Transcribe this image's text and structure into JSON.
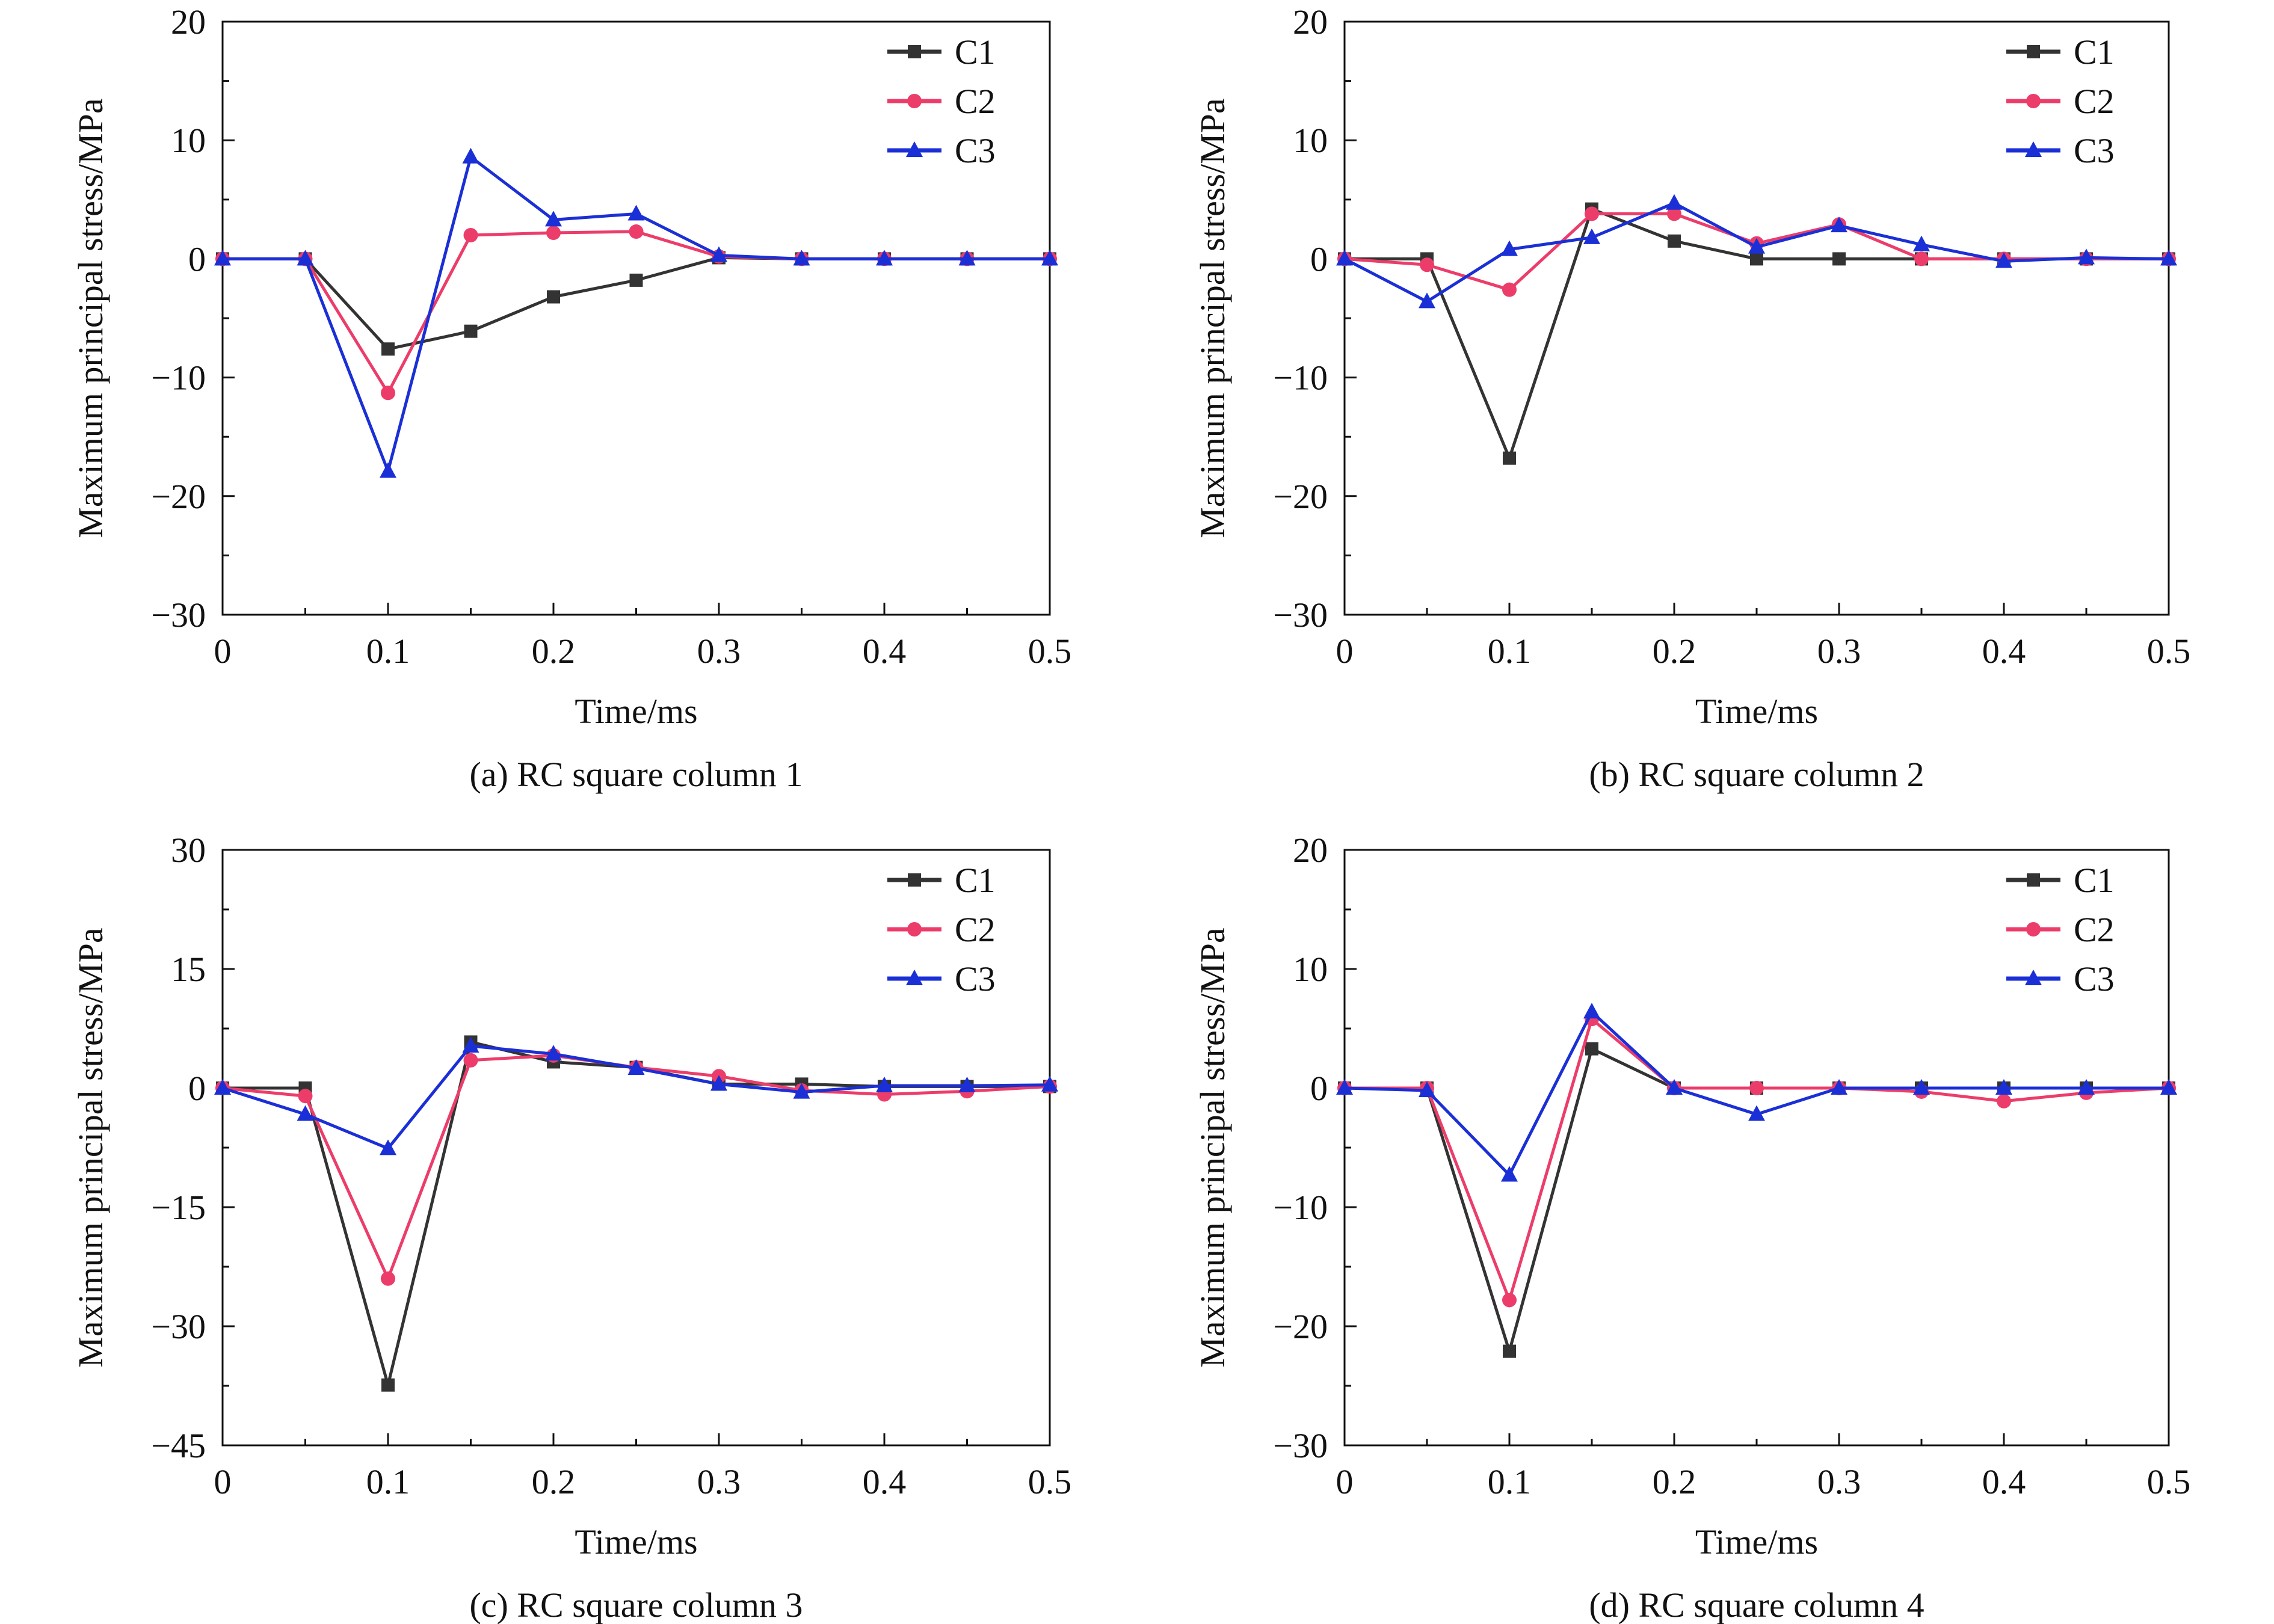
{
  "series_styles": [
    {
      "name": "C1",
      "color": "#333333",
      "marker": "square"
    },
    {
      "name": "C2",
      "color": "#ec3d6a",
      "marker": "circle"
    },
    {
      "name": "C3",
      "color": "#1b2fd6",
      "marker": "triangle"
    }
  ],
  "chart_data": [
    {
      "type": "line",
      "caption": "(a) RC square column 1",
      "xlabel": "Time/ms",
      "ylabel": "Maximum principal stress/MPa",
      "xlim": [
        0,
        0.5
      ],
      "ylim": [
        -30,
        20
      ],
      "xticks": [
        0,
        0.1,
        0.2,
        0.3,
        0.4,
        0.5
      ],
      "xtick_labels": [
        "0",
        "0.1",
        "0.2",
        "0.3",
        "0.4",
        "0.5"
      ],
      "yticks": [
        -30,
        -20,
        -10,
        0,
        10,
        20
      ],
      "ytick_labels": [
        "−30",
        "−20",
        "−10",
        "0",
        "10",
        "20"
      ],
      "legend": "top-right",
      "grid": false,
      "x": [
        0,
        0.05,
        0.1,
        0.15,
        0.2,
        0.25,
        0.3,
        0.35,
        0.4,
        0.45,
        0.5
      ],
      "series": [
        {
          "name": "C1",
          "values": [
            0,
            0,
            -7.6,
            -6.1,
            -3.2,
            -1.8,
            0.1,
            0,
            0,
            0,
            0
          ]
        },
        {
          "name": "C2",
          "values": [
            0,
            0,
            -11.3,
            2.0,
            2.2,
            2.3,
            0.2,
            0,
            0,
            0,
            0
          ]
        },
        {
          "name": "C3",
          "values": [
            0,
            0,
            -17.9,
            8.6,
            3.3,
            3.8,
            0.3,
            0,
            0,
            0,
            0
          ]
        }
      ]
    },
    {
      "type": "line",
      "caption": "(b) RC square column 2",
      "xlabel": "Time/ms",
      "ylabel": "Maximum principal stress/MPa",
      "xlim": [
        0,
        0.5
      ],
      "ylim": [
        -30,
        20
      ],
      "xticks": [
        0,
        0.1,
        0.2,
        0.3,
        0.4,
        0.5
      ],
      "xtick_labels": [
        "0",
        "0.1",
        "0.2",
        "0.3",
        "0.4",
        "0.5"
      ],
      "yticks": [
        -30,
        -20,
        -10,
        0,
        10,
        20
      ],
      "ytick_labels": [
        "−30",
        "−20",
        "−10",
        "0",
        "10",
        "20"
      ],
      "legend": "top-right",
      "grid": false,
      "x": [
        0,
        0.05,
        0.1,
        0.15,
        0.2,
        0.25,
        0.3,
        0.35,
        0.4,
        0.45,
        0.5
      ],
      "series": [
        {
          "name": "C1",
          "values": [
            0,
            0,
            -16.8,
            4.2,
            1.5,
            0,
            0,
            0,
            0,
            0,
            0
          ]
        },
        {
          "name": "C2",
          "values": [
            0,
            -0.5,
            -2.6,
            3.8,
            3.8,
            1.3,
            2.9,
            0,
            0,
            0,
            0
          ]
        },
        {
          "name": "C3",
          "values": [
            0,
            -3.6,
            0.8,
            1.8,
            4.7,
            1.0,
            2.8,
            1.2,
            -0.2,
            0.1,
            0
          ]
        }
      ]
    },
    {
      "type": "line",
      "caption": "(c) RC square column 3",
      "xlabel": "Time/ms",
      "ylabel": "Maximum principal stress/MPa",
      "xlim": [
        0,
        0.5
      ],
      "ylim": [
        -45,
        30
      ],
      "xticks": [
        0,
        0.1,
        0.2,
        0.3,
        0.4,
        0.5
      ],
      "xtick_labels": [
        "0",
        "0.1",
        "0.2",
        "0.3",
        "0.4",
        "0.5"
      ],
      "yticks": [
        -45,
        -30,
        -15,
        0,
        15,
        30
      ],
      "ytick_labels": [
        "−45",
        "−30",
        "−15",
        "0",
        "15",
        "30"
      ],
      "legend": "top-right",
      "grid": false,
      "x": [
        0,
        0.05,
        0.1,
        0.15,
        0.2,
        0.25,
        0.3,
        0.35,
        0.4,
        0.45,
        0.5
      ],
      "series": [
        {
          "name": "C1",
          "values": [
            0,
            0,
            -37.4,
            5.8,
            3.3,
            2.6,
            0.5,
            0.5,
            0.2,
            0.2,
            0.2
          ]
        },
        {
          "name": "C2",
          "values": [
            0,
            -1.0,
            -24.0,
            3.5,
            4.1,
            2.6,
            1.5,
            -0.3,
            -0.8,
            -0.4,
            0.2
          ]
        },
        {
          "name": "C3",
          "values": [
            0,
            -3.3,
            -7.6,
            5.3,
            4.3,
            2.5,
            0.5,
            -0.5,
            0.3,
            0.3,
            0.4
          ]
        }
      ]
    },
    {
      "type": "line",
      "caption": "(d) RC square column 4",
      "xlabel": "Time/ms",
      "ylabel": "Maximum principal stress/MPa",
      "xlim": [
        0,
        0.5
      ],
      "ylim": [
        -30,
        20
      ],
      "xticks": [
        0,
        0.1,
        0.2,
        0.3,
        0.4,
        0.5
      ],
      "xtick_labels": [
        "0",
        "0.1",
        "0.2",
        "0.3",
        "0.4",
        "0.5"
      ],
      "yticks": [
        -30,
        -20,
        -10,
        0,
        10,
        20
      ],
      "ytick_labels": [
        "−30",
        "−20",
        "−10",
        "0",
        "10",
        "20"
      ],
      "legend": "top-right",
      "grid": false,
      "x": [
        0,
        0.05,
        0.1,
        0.15,
        0.2,
        0.25,
        0.3,
        0.35,
        0.4,
        0.45,
        0.5
      ],
      "series": [
        {
          "name": "C1",
          "values": [
            0,
            0,
            -22.1,
            3.3,
            0,
            0,
            0,
            0,
            0,
            0,
            0
          ]
        },
        {
          "name": "C2",
          "values": [
            0,
            0,
            -17.8,
            5.8,
            0,
            0,
            0,
            -0.3,
            -1.1,
            -0.4,
            0
          ]
        },
        {
          "name": "C3",
          "values": [
            0,
            -0.2,
            -7.3,
            6.4,
            0,
            -2.2,
            0,
            0,
            0,
            0,
            0
          ]
        }
      ]
    }
  ]
}
